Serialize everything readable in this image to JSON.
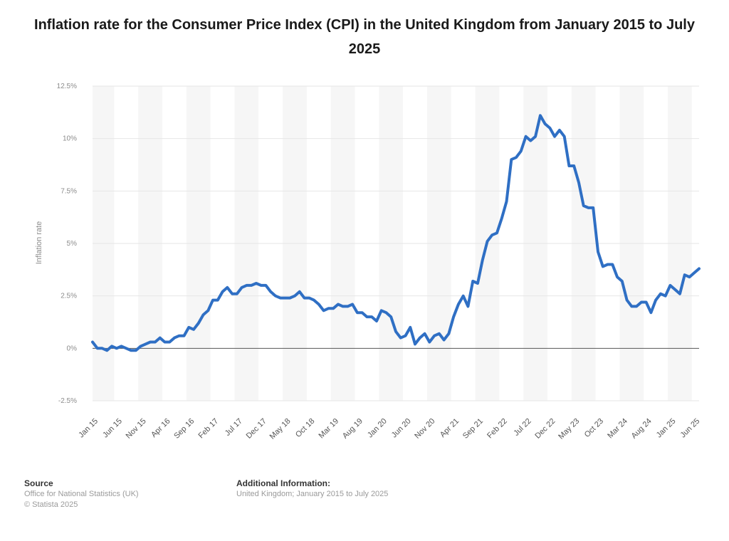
{
  "chart_data": {
    "type": "line",
    "title": "Inflation rate for the Consumer Price Index (CPI) in the United Kingdom from January 2015 to July 2025",
    "xlabel": "",
    "ylabel": "Inflation rate",
    "ylim": [
      -2.5,
      12.5
    ],
    "y_ticks": [
      12.5,
      10,
      7.5,
      5,
      2.5,
      0,
      -2.5
    ],
    "y_tick_labels": [
      "12.5%",
      "10%",
      "7.5%",
      "5%",
      "2.5%",
      "0%",
      "-2.5%"
    ],
    "x_tick_labels": [
      "Jan 15",
      "Jun 15",
      "Nov 15",
      "Apr 16",
      "Sep 16",
      "Feb 17",
      "Jul 17",
      "Dec 17",
      "May 18",
      "Oct 18",
      "Mar 19",
      "Aug 19",
      "Jan 20",
      "Jun 20",
      "Nov 20",
      "Apr 21",
      "Sep 21",
      "Feb 22",
      "Jul 22",
      "Dec 22",
      "May 23",
      "Oct 23",
      "Mar 24",
      "Aug 24",
      "Jan 25",
      "Jun 25"
    ],
    "grid": true,
    "series": [
      {
        "name": "Inflation rate",
        "color": "#2f6fc4",
        "values": [
          0.3,
          0.0,
          0.0,
          -0.1,
          0.1,
          0.0,
          0.1,
          0.0,
          -0.1,
          -0.1,
          0.1,
          0.2,
          0.3,
          0.3,
          0.5,
          0.3,
          0.3,
          0.5,
          0.6,
          0.6,
          1.0,
          0.9,
          1.2,
          1.6,
          1.8,
          2.3,
          2.3,
          2.7,
          2.9,
          2.6,
          2.6,
          2.9,
          3.0,
          3.0,
          3.1,
          3.0,
          3.0,
          2.7,
          2.5,
          2.4,
          2.4,
          2.4,
          2.5,
          2.7,
          2.4,
          2.4,
          2.3,
          2.1,
          1.8,
          1.9,
          1.9,
          2.1,
          2.0,
          2.0,
          2.1,
          1.7,
          1.7,
          1.5,
          1.5,
          1.3,
          1.8,
          1.7,
          1.5,
          0.8,
          0.5,
          0.6,
          1.0,
          0.2,
          0.5,
          0.7,
          0.3,
          0.6,
          0.7,
          0.4,
          0.7,
          1.5,
          2.1,
          2.5,
          2.0,
          3.2,
          3.1,
          4.2,
          5.1,
          5.4,
          5.5,
          6.2,
          7.0,
          9.0,
          9.1,
          9.4,
          10.1,
          9.9,
          10.1,
          11.1,
          10.7,
          10.5,
          10.1,
          10.4,
          10.1,
          8.7,
          8.7,
          7.9,
          6.8,
          6.7,
          6.7,
          4.6,
          3.9,
          4.0,
          4.0,
          3.4,
          3.2,
          2.3,
          2.0,
          2.0,
          2.2,
          2.2,
          1.7,
          2.3,
          2.6,
          2.5,
          3.0,
          2.8,
          2.6,
          3.5,
          3.4,
          3.6,
          3.8
        ]
      }
    ]
  },
  "footer": {
    "source_heading": "Source",
    "source_line1": "Office for National Statistics (UK)",
    "source_line2": "© Statista 2025",
    "info_heading": "Additional Information:",
    "info_line1": "United Kingdom; January 2015 to July 2025"
  }
}
